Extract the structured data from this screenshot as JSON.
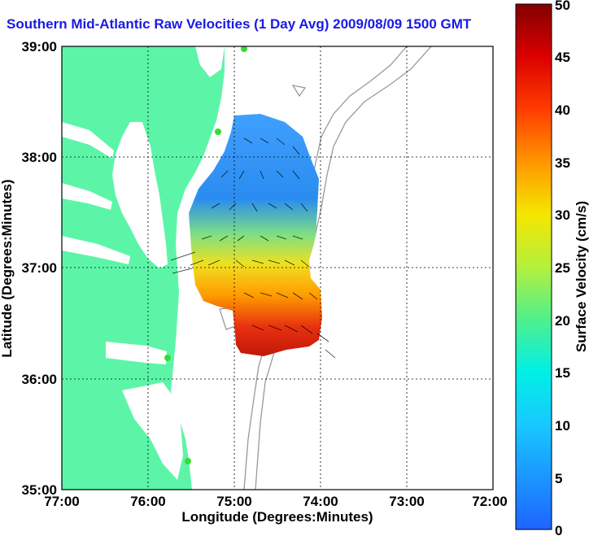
{
  "title": "Southern Mid-Atlantic Raw Velocities (1 Day Avg) 2009/08/09 1500 GMT",
  "map": {
    "xlabel": "Longitude (Degrees:Minutes)",
    "ylabel": "Latitude (Degrees:Minutes)",
    "x_ticks": [
      "77:00",
      "76:00",
      "75:00",
      "74:00",
      "73:00",
      "72:00"
    ],
    "y_ticks": [
      "39:00",
      "38:00",
      "37:00",
      "36:00",
      "35:00"
    ],
    "land_color": "#5cf5a8",
    "bathymetry_color": "#999999",
    "station_color": "#33dd33"
  },
  "colorbar": {
    "label": "Surface Velocity (cm/s)",
    "ticks": [
      "50",
      "45",
      "40",
      "35",
      "30",
      "25",
      "20",
      "15",
      "10",
      "5",
      "0"
    ],
    "min": 0,
    "max": 50
  }
}
